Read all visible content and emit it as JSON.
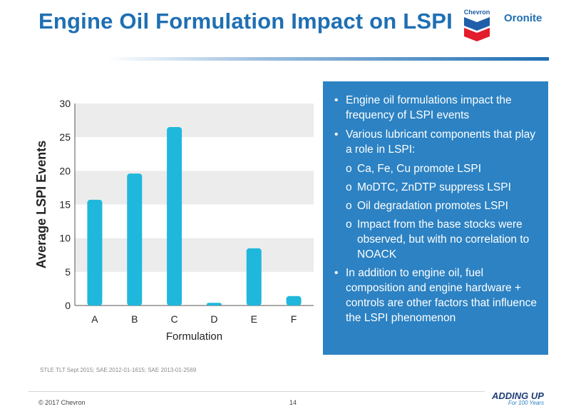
{
  "slide": {
    "title": "Engine Oil Formulation Impact on LSPI",
    "brand_logo": "Chevron",
    "brand_sub": "Oronite",
    "source": "STLE TLT Sept 2015; SAE 2012-01-1615; SAE 2013-01-2569",
    "copyright": "© 2017 Chevron",
    "page_number": "14",
    "tagline_main": "ADDING UP",
    "tagline_sub": "For 100 Years"
  },
  "panel": {
    "items": [
      {
        "level": 1,
        "text": "Engine oil formulations impact the frequency of LSPI events"
      },
      {
        "level": 1,
        "text": "Various lubricant components that play a role in LSPI:"
      },
      {
        "level": 2,
        "text": "Ca, Fe, Cu promote LSPI"
      },
      {
        "level": 2,
        "text": "MoDTC, ZnDTP suppress LSPI"
      },
      {
        "level": 2,
        "text": "Oil degradation promotes LSPI"
      },
      {
        "level": 2,
        "text": "Impact from the base stocks were observed, but with no correlation to NOACK"
      },
      {
        "level": 1,
        "text": "In addition to engine oil, fuel composition and engine hardware + controls are other factors that influence the LSPI phenomenon"
      }
    ]
  },
  "colors": {
    "title": "#1f6fb3",
    "panel_bg": "#2c82c3",
    "bar": "#1fb8dc",
    "band": "#ececec"
  },
  "chart_data": {
    "type": "bar",
    "categories": [
      "A",
      "B",
      "C",
      "D",
      "E",
      "F"
    ],
    "values": [
      15.7,
      19.6,
      26.5,
      0.4,
      8.5,
      1.4
    ],
    "xlabel": "Formulation",
    "ylabel": "Average LSPI Events",
    "ylim": [
      0,
      30
    ],
    "yticks": [
      0,
      5,
      10,
      15,
      20,
      25,
      30
    ],
    "grid": "alternating horizontal bands",
    "legend": "none"
  }
}
